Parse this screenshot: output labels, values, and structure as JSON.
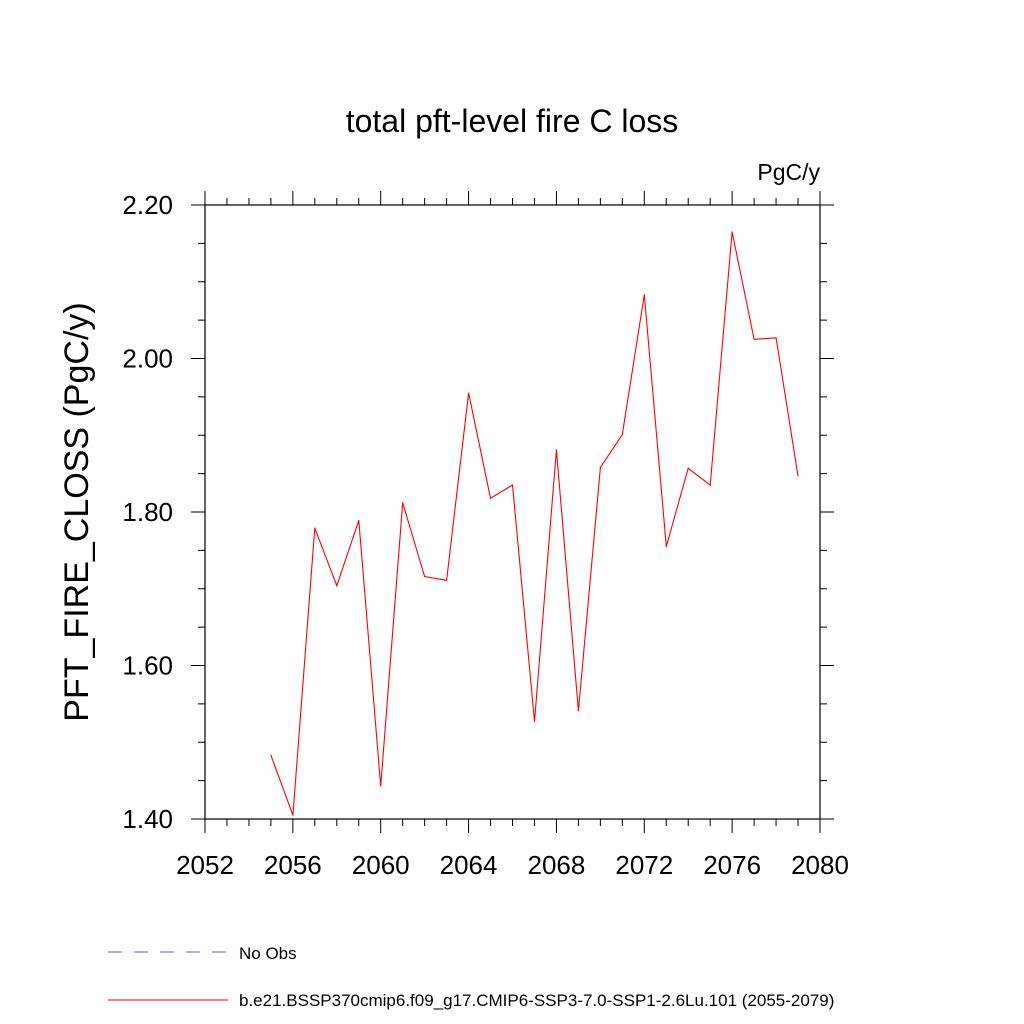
{
  "chart_data": {
    "type": "line",
    "title": "total pft-level fire C loss",
    "units": "PgC/y",
    "xlabel": "",
    "ylabel": "PFT_FIRE_CLOSS  (PgC/y)",
    "xlim": [
      2052,
      2080
    ],
    "ylim": [
      1.4,
      2.2
    ],
    "xticks": [
      2052,
      2056,
      2060,
      2064,
      2068,
      2072,
      2076,
      2080
    ],
    "yticks": [
      "1.40",
      "1.60",
      "1.80",
      "2.00",
      "2.20"
    ],
    "grid": false,
    "legend_position": "bottom-left",
    "series": [
      {
        "name": "b.e21.BSSP370cmip6.f09_g17.CMIP6-SSP3-7.0-SSP1-2.6Lu.101 (2055-2079)",
        "color": "#ff0000",
        "style": "solid",
        "x": [
          2055,
          2056,
          2057,
          2058,
          2059,
          2060,
          2061,
          2062,
          2063,
          2064,
          2065,
          2066,
          2067,
          2068,
          2069,
          2070,
          2071,
          2072,
          2073,
          2074,
          2075,
          2076,
          2077,
          2078,
          2079
        ],
        "values": [
          1.483,
          1.405,
          1.779,
          1.704,
          1.789,
          1.443,
          1.812,
          1.716,
          1.711,
          1.955,
          1.818,
          1.835,
          1.527,
          1.881,
          1.541,
          1.858,
          1.901,
          2.083,
          1.755,
          1.857,
          1.835,
          2.165,
          2.025,
          2.027,
          1.847
        ]
      }
    ],
    "legend": [
      {
        "label": "No Obs",
        "color": "#6a5acd",
        "style": "dashed"
      },
      {
        "label": "b.e21.BSSP370cmip6.f09_g17.CMIP6-SSP3-7.0-SSP1-2.6Lu.101 (2055-2079)",
        "color": "#ff0000",
        "style": "solid"
      }
    ]
  }
}
